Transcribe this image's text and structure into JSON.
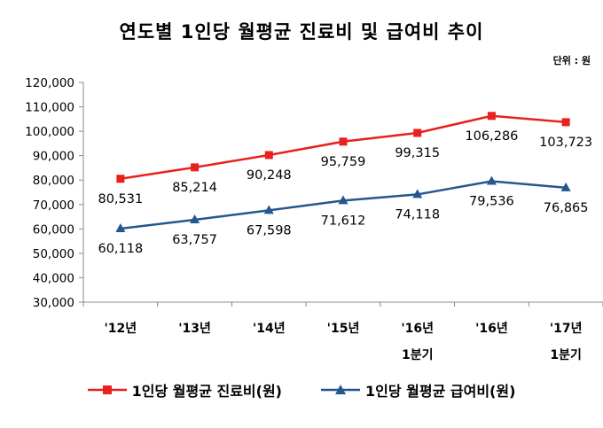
{
  "chart_data": {
    "type": "line",
    "title": "연도별 1인당 월평균 진료비 및 급여비 추이",
    "unit": "단위 : 원",
    "categories": [
      [
        "'12년"
      ],
      [
        "'13년"
      ],
      [
        "'14년"
      ],
      [
        "'15년"
      ],
      [
        "'16년",
        "1분기"
      ],
      [
        "'16년"
      ],
      [
        "'17년",
        "1분기"
      ]
    ],
    "ylim": [
      30000,
      120000
    ],
    "y_ticks": [
      "120,000",
      "110,000",
      "100,000",
      "90,000",
      "80,000",
      "70,000",
      "60,000",
      "50,000",
      "40,000",
      "30,000"
    ],
    "y_tick_values": [
      120000,
      110000,
      100000,
      90000,
      80000,
      70000,
      60000,
      50000,
      40000,
      30000
    ],
    "grid": false,
    "legend_position": "bottom",
    "series": [
      {
        "name": "1인당 월평균 진료비(원)",
        "color": "#e8201e",
        "marker": "square",
        "values": [
          80531,
          85214,
          90248,
          95759,
          99315,
          106286,
          103723
        ],
        "labels": [
          "80,531",
          "85,214",
          "90,248",
          "95,759",
          "99,315",
          "106,286",
          "103,723"
        ],
        "label_position": "below"
      },
      {
        "name": "1인당 월평균 급여비(원)",
        "color": "#24578e",
        "marker": "triangle",
        "values": [
          60118,
          63757,
          67598,
          71612,
          74118,
          79536,
          76865
        ],
        "labels": [
          "60,118",
          "63,757",
          "67,598",
          "71,612",
          "74,118",
          "79,536",
          "76,865"
        ],
        "label_position": "below"
      }
    ]
  }
}
